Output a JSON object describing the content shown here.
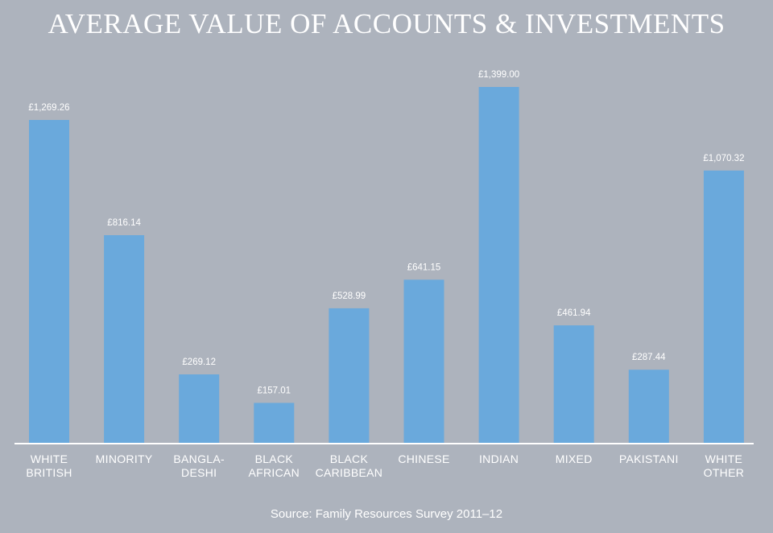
{
  "chart_data": {
    "type": "bar",
    "title": "AVERAGE VALUE OF ACCOUNTS & INVESTMENTS",
    "categories": [
      [
        "WHITE",
        "BRITISH"
      ],
      [
        "MINORITY"
      ],
      [
        "BANGLA-",
        "DESHI"
      ],
      [
        "BLACK",
        "AFRICAN"
      ],
      [
        "BLACK",
        "CARIBBEAN"
      ],
      [
        "CHINESE"
      ],
      [
        "INDIAN"
      ],
      [
        "MIXED"
      ],
      [
        "PAKISTANI"
      ],
      [
        "WHITE",
        "OTHER"
      ]
    ],
    "values": [
      1269.26,
      816.14,
      269.12,
      157.01,
      528.99,
      641.15,
      1399.0,
      461.94,
      287.44,
      1070.32
    ],
    "value_labels": [
      "£1,269.26",
      "£816.14",
      "£269.12",
      "£157.01",
      "£528.99",
      "£641.15",
      "£1,399.00",
      "£461.94",
      "£287.44",
      "£1,070.32"
    ],
    "xlabel": "",
    "ylabel": "",
    "ylim": [
      0,
      1399
    ],
    "grid": false,
    "bar_color": "#6aa9dc",
    "axis_color": "#ffffff",
    "background": "#adb3bd"
  },
  "source": "Source: Family Resources Survey 2011–12"
}
